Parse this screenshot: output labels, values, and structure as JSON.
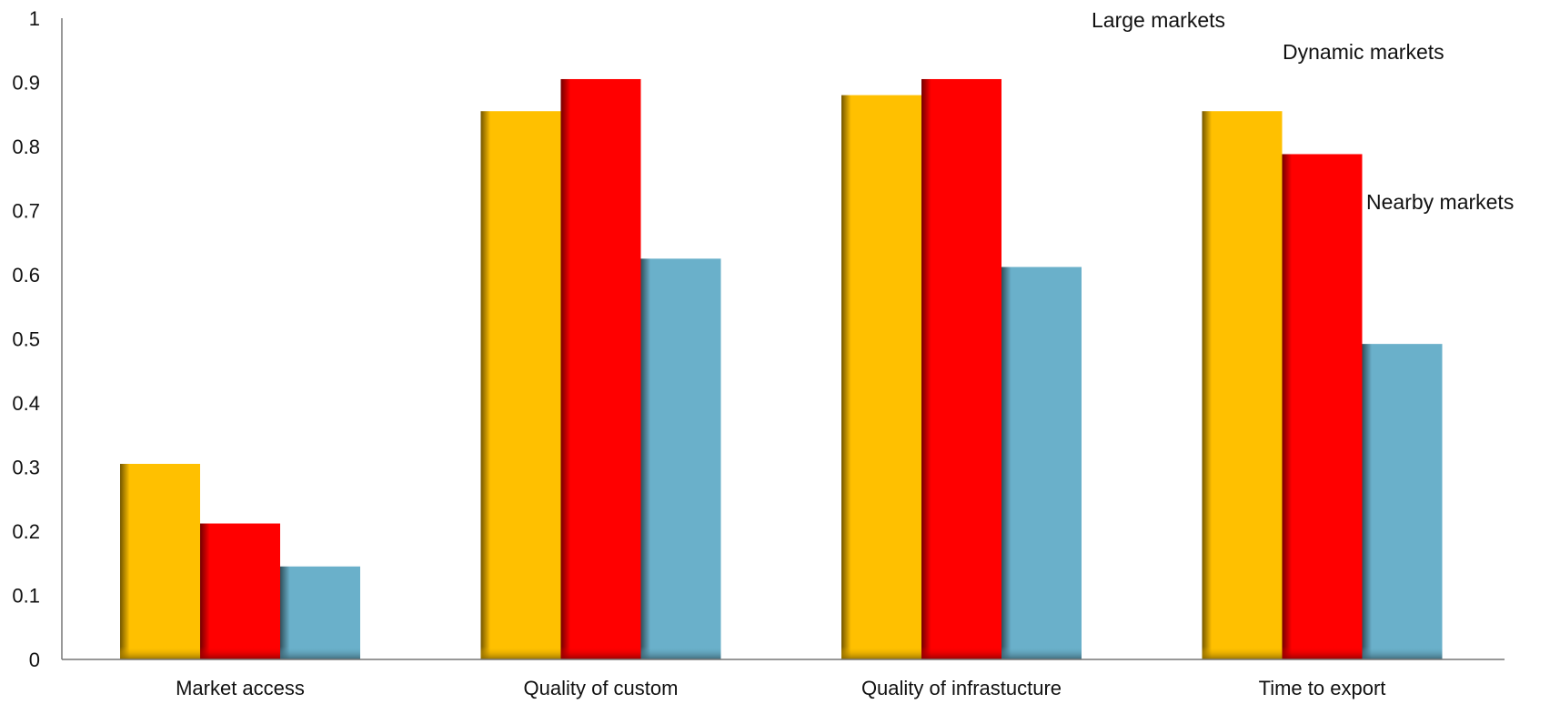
{
  "chart_data": {
    "type": "bar",
    "title": "",
    "xlabel": "",
    "ylabel": "",
    "ylim": [
      0,
      1
    ],
    "yticks": [
      0,
      0.1,
      0.2,
      0.3,
      0.4,
      0.5,
      0.6,
      0.7,
      0.8,
      0.9,
      1
    ],
    "ytick_labels": [
      "0",
      "0.1",
      "0.2",
      "0.3",
      "0.4",
      "0.5",
      "0.6",
      "0.7",
      "0.8",
      "0.9",
      "1"
    ],
    "grid": false,
    "categories": [
      "Market access",
      "Quality of custom",
      "Quality of infrastucture",
      "Time to export"
    ],
    "series": [
      {
        "name": "Large markets",
        "values": [
          0.305,
          0.855,
          0.88,
          0.855
        ],
        "color": "#FFC000"
      },
      {
        "name": "Dynamic markets",
        "values": [
          0.212,
          0.905,
          0.905,
          0.788
        ],
        "color": "#FF0000"
      },
      {
        "name": "Nearby markets",
        "values": [
          0.145,
          0.625,
          0.612,
          0.492
        ],
        "color": "#6AB0CA"
      }
    ]
  }
}
